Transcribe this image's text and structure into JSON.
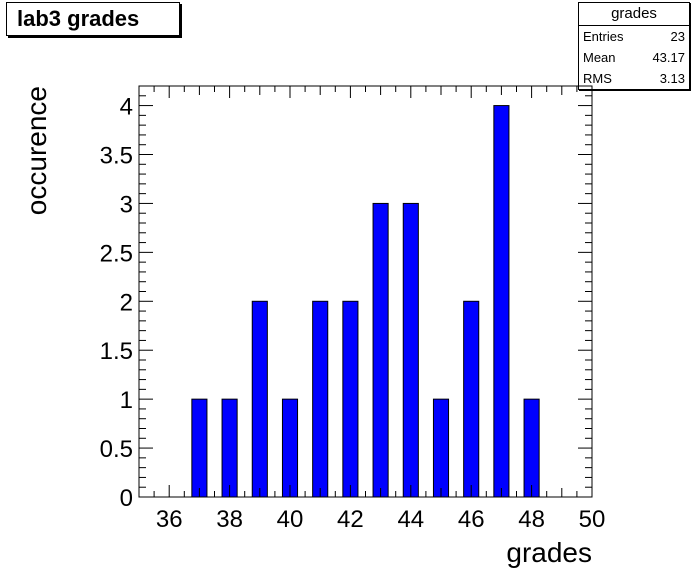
{
  "title": "lab3 grades",
  "stats": {
    "name": "grades",
    "rows": [
      {
        "label": "Entries",
        "value": "23"
      },
      {
        "label": "Mean",
        "value": "43.17"
      },
      {
        "label": "RMS",
        "value": "3.13"
      }
    ]
  },
  "chart_data": {
    "type": "bar",
    "title": "lab3 grades",
    "xlabel": "grades",
    "ylabel": "occurence",
    "xlim": [
      35,
      50
    ],
    "ylim": [
      0,
      4.2
    ],
    "bar_color": "#0000ff",
    "bins": [
      {
        "x": 37,
        "value": 1
      },
      {
        "x": 38,
        "value": 1
      },
      {
        "x": 39,
        "value": 2
      },
      {
        "x": 40,
        "value": 1
      },
      {
        "x": 41,
        "value": 2
      },
      {
        "x": 42,
        "value": 2
      },
      {
        "x": 43,
        "value": 3
      },
      {
        "x": 44,
        "value": 3
      },
      {
        "x": 45,
        "value": 1
      },
      {
        "x": 46,
        "value": 2
      },
      {
        "x": 47,
        "value": 4
      },
      {
        "x": 48,
        "value": 1
      }
    ],
    "xticks": [
      "36",
      "38",
      "40",
      "42",
      "44",
      "46",
      "48",
      "50"
    ],
    "yticks": [
      "0",
      "0.5",
      "1",
      "1.5",
      "2",
      "2.5",
      "3",
      "3.5",
      "4"
    ]
  }
}
